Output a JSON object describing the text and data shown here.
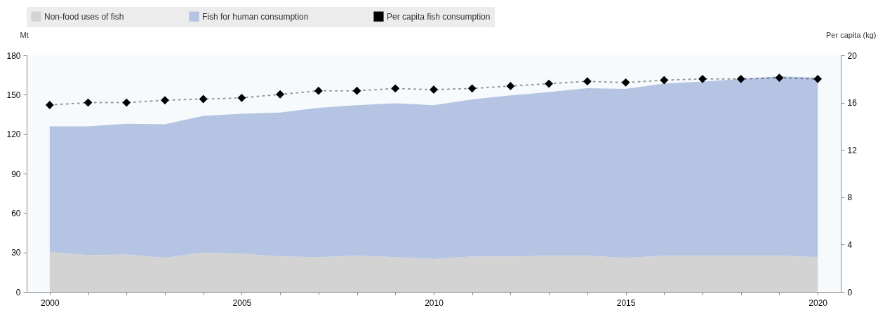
{
  "chart_data": {
    "type": "area",
    "stacked": true,
    "ylabel": "Mt",
    "y2label": "Per capita (kg)",
    "x": [
      2000,
      2001,
      2002,
      2003,
      2004,
      2005,
      2006,
      2007,
      2008,
      2009,
      2010,
      2011,
      2012,
      2013,
      2014,
      2015,
      2016,
      2017,
      2018,
      2019,
      2020
    ],
    "xlim": [
      1999.4,
      2020.6
    ],
    "xticks": [
      2000,
      {
        "value": 2001,
        "label": null
      },
      {
        "value": 2002,
        "label": null
      },
      {
        "value": 2003,
        "label": null
      },
      {
        "value": 2004,
        "label": null
      },
      2005,
      {
        "value": 2006,
        "label": null
      },
      {
        "value": 2007,
        "label": null
      },
      {
        "value": 2008,
        "label": null
      },
      {
        "value": 2009,
        "label": null
      },
      2010,
      {
        "value": 2011,
        "label": null
      },
      {
        "value": 2012,
        "label": null
      },
      {
        "value": 2013,
        "label": null
      },
      {
        "value": 2014,
        "label": null
      },
      2015,
      {
        "value": 2016,
        "label": null
      },
      {
        "value": 2017,
        "label": null
      },
      {
        "value": 2018,
        "label": null
      },
      {
        "value": 2019,
        "label": null
      },
      2020
    ],
    "ylim": [
      0,
      180
    ],
    "yticks": [
      0,
      30,
      60,
      90,
      120,
      150,
      180
    ],
    "y2lim": [
      0,
      20
    ],
    "y2ticks": [
      0,
      4,
      8,
      12,
      16,
      20
    ],
    "grid": false,
    "legend": "top",
    "series": [
      {
        "name": "Non-food uses of fish",
        "color": "#d3d3d3",
        "values": [
          30.5,
          28,
          28.5,
          26,
          30,
          29,
          27,
          26.5,
          27.5,
          26.5,
          25,
          27,
          27,
          27.5,
          27.5,
          26,
          27.5,
          27.5,
          27.5,
          27.5,
          26.5
        ]
      },
      {
        "name": "Fish for human consumption",
        "color": "#b4c4e2",
        "values": [
          95.5,
          98,
          99.5,
          101.5,
          104,
          106.5,
          109.5,
          113.5,
          114.5,
          117,
          117,
          119.5,
          122.5,
          124.5,
          127.5,
          128.5,
          131,
          132.5,
          134.5,
          136.5,
          136.5
        ]
      },
      {
        "name": "Per capita fish consumption",
        "type": "line",
        "axis": "y2",
        "marker": "diamond",
        "line_style": "dotted",
        "color": "#000000",
        "values": [
          15.8,
          16.0,
          16.0,
          16.2,
          16.3,
          16.4,
          16.7,
          17.0,
          17.0,
          17.2,
          17.1,
          17.2,
          17.4,
          17.6,
          17.8,
          17.7,
          17.9,
          18.0,
          18.0,
          18.1,
          18.0
        ]
      }
    ]
  }
}
